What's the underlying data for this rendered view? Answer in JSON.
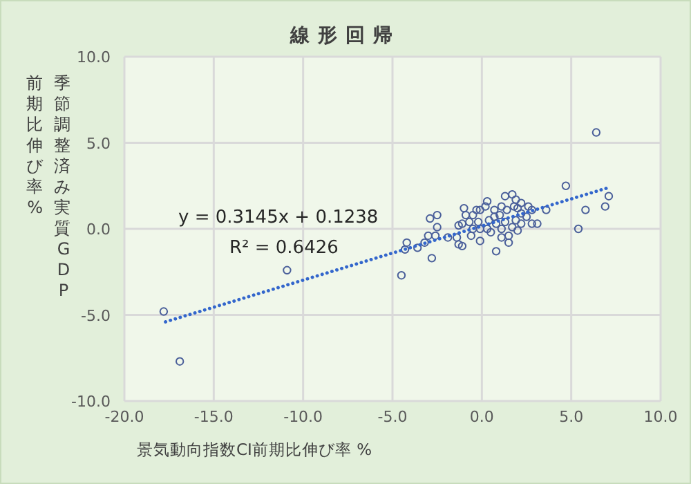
{
  "chart_data": {
    "type": "scatter",
    "title": "線形回帰",
    "xlabel": "景気動向指数CI前期比伸び率 %",
    "ylabel": "季節調整済み実質GDP前期比伸び率 %",
    "annotations": [
      "y = 0.3145x + 0.1238",
      "R² = 0.6426"
    ],
    "xlim": [
      -20,
      10
    ],
    "ylim": [
      -10,
      10
    ],
    "xticks": [
      {
        "value": -20,
        "label": "-20.0"
      },
      {
        "value": -15,
        "label": "-15.0"
      },
      {
        "value": -10,
        "label": "-10.0"
      },
      {
        "value": -5,
        "label": "-5.0"
      },
      {
        "value": 0,
        "label": "0.0"
      },
      {
        "value": 5,
        "label": "5.0"
      },
      {
        "value": 10,
        "label": "10.0"
      }
    ],
    "yticks": [
      {
        "value": -10,
        "label": "-10.0"
      },
      {
        "value": -5,
        "label": "-5.0"
      },
      {
        "value": 0,
        "label": "0.0"
      },
      {
        "value": 5,
        "label": "5.0"
      },
      {
        "value": 10,
        "label": "10.0"
      }
    ],
    "grid": true,
    "marker": "circle",
    "series": [
      {
        "color": "#4a5f9a",
        "x": [
          -17.8,
          -16.9,
          -10.9,
          -4.5,
          6.4,
          4.7,
          7.1,
          6.9,
          5.8,
          5.4,
          3.6,
          -4.3,
          -4.2,
          -3.6,
          -3.2,
          -2.8,
          -2.9,
          -2.5,
          -2.5,
          -3.0,
          -2.6,
          -1.9,
          -1.4,
          -1.3,
          -1.1,
          -1.3,
          -1.1,
          -1.0,
          -0.1,
          0.8,
          0.3,
          1.3,
          1.7,
          1.9,
          1.5,
          1.5,
          1.1,
          2.0,
          3.1,
          2.8,
          -0.6,
          -0.5,
          0.5,
          -0.3,
          -0.1,
          0.2,
          0.7,
          1.0,
          1.4,
          2.0,
          2.2,
          2.5,
          2.8,
          1.9,
          1.3,
          0.8,
          0.4,
          -0.2,
          -0.7,
          -0.5,
          -0.9,
          1.7,
          2.2,
          1.1,
          0.3,
          -0.1,
          0.7,
          2.2,
          2.6,
          1.8,
          1.1
        ],
        "values": [
          -4.8,
          -7.7,
          -2.4,
          -2.7,
          5.6,
          2.5,
          1.9,
          1.3,
          1.1,
          0.0,
          1.1,
          -1.2,
          -0.8,
          -1.1,
          -0.8,
          -1.7,
          0.6,
          0.8,
          0.1,
          -0.4,
          -0.4,
          -0.5,
          -0.5,
          -0.9,
          -1.0,
          0.2,
          0.3,
          1.2,
          -0.7,
          -1.3,
          1.6,
          1.9,
          2.0,
          1.7,
          -0.4,
          -0.8,
          -0.5,
          -0.1,
          0.3,
          0.3,
          -0.4,
          0.0,
          -0.2,
          1.1,
          1.1,
          1.3,
          1.1,
          0.8,
          1.1,
          1.2,
          0.9,
          0.7,
          1.1,
          0.5,
          0.4,
          0.3,
          0.5,
          0.4,
          0.4,
          0.8,
          0.8,
          0.1,
          0.3,
          0.0,
          0.0,
          0.0,
          0.7,
          1.5,
          1.3,
          1.3,
          1.3
        ]
      },
      {
        "type": "line",
        "color": "#3366cc",
        "line_style": "dotted",
        "marker": "none",
        "x": [
          -17.7,
          7.1
        ],
        "values": [
          -5.4,
          2.4
        ]
      }
    ]
  }
}
